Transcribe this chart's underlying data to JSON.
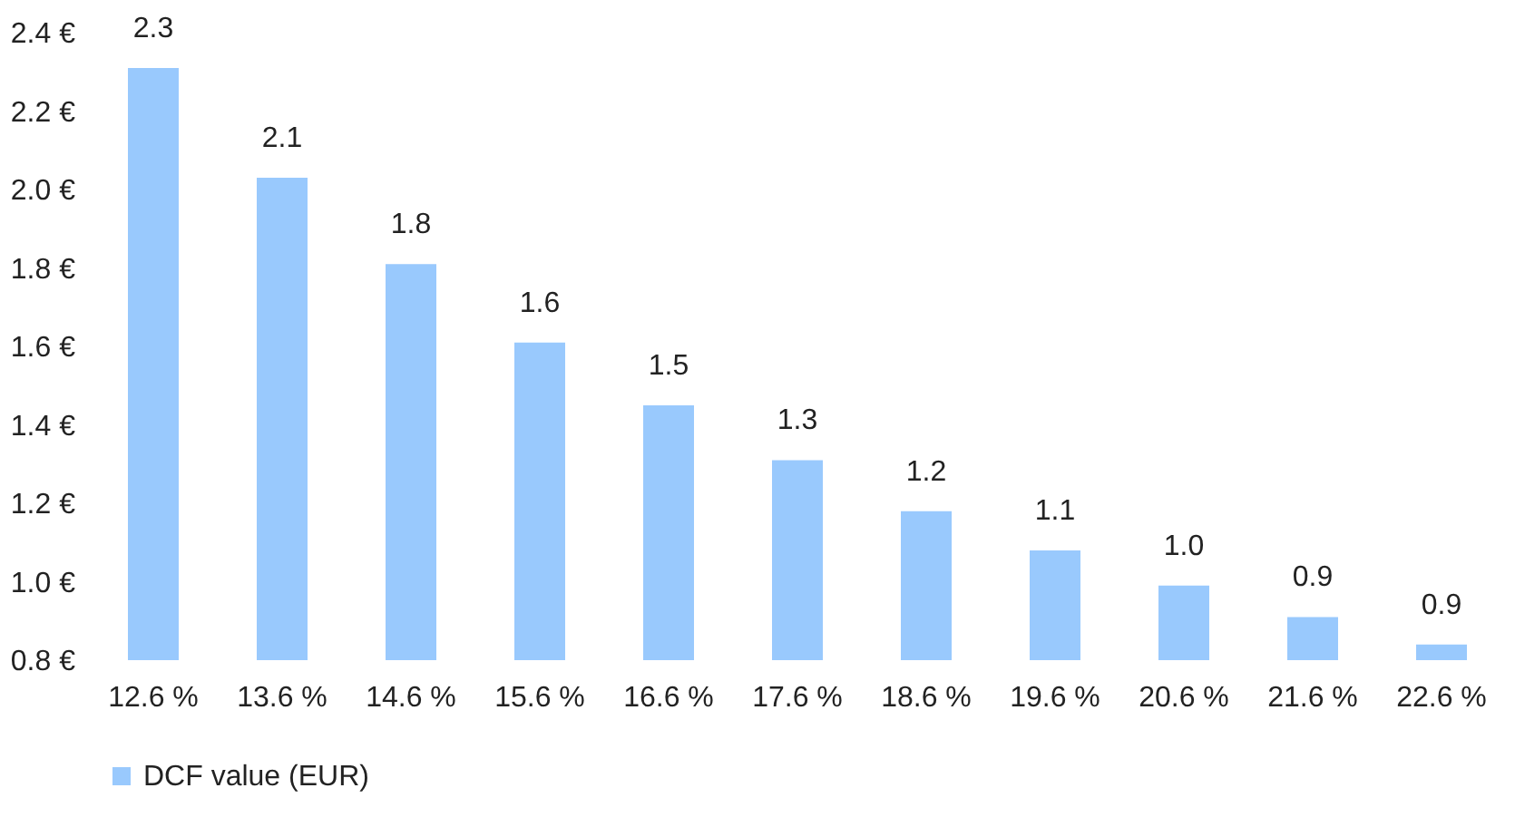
{
  "chart_data": {
    "type": "bar",
    "categories": [
      "12.6 %",
      "13.6 %",
      "14.6 %",
      "15.6 %",
      "16.6 %",
      "17.6 %",
      "18.6 %",
      "19.6 %",
      "20.6 %",
      "21.6 %",
      "22.6 %"
    ],
    "series": [
      {
        "name": "DCF value (EUR)",
        "color": "#99c9fd",
        "values": [
          2.31,
          2.03,
          1.81,
          1.61,
          1.45,
          1.31,
          1.18,
          1.08,
          0.99,
          0.91,
          0.84
        ]
      }
    ],
    "value_labels": [
      "2.3",
      "2.1",
      "1.8",
      "1.6",
      "1.5",
      "1.3",
      "1.2",
      "1.1",
      "1.0",
      "0.9",
      "0.9"
    ],
    "ylim": [
      0.8,
      2.4
    ],
    "yticks": [
      {
        "value": 0.8,
        "label": "0.8 €"
      },
      {
        "value": 1.0,
        "label": "1.0 €"
      },
      {
        "value": 1.2,
        "label": "1.2 €"
      },
      {
        "value": 1.4,
        "label": "1.4 €"
      },
      {
        "value": 1.6,
        "label": "1.6 €"
      },
      {
        "value": 1.8,
        "label": "1.8 €"
      },
      {
        "value": 2.0,
        "label": "2.0 €"
      },
      {
        "value": 2.2,
        "label": "2.2 €"
      },
      {
        "value": 2.4,
        "label": "2.4 €"
      }
    ],
    "grid": false,
    "legend": "bottom"
  }
}
